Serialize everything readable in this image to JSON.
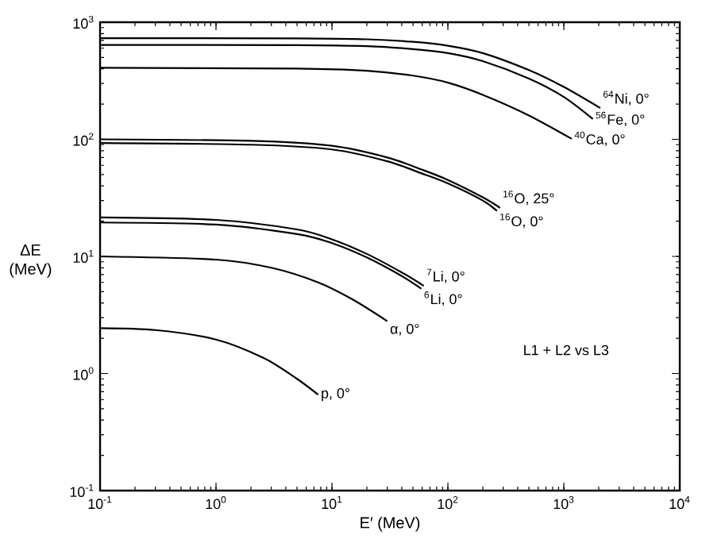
{
  "chart_data": {
    "type": "line",
    "xlabel": "E′ (MeV)",
    "ylabel": "ΔE (MeV)",
    "log": "xy",
    "marker": "none",
    "line_style": "solid",
    "xlim": [
      0.1,
      10000
    ],
    "ylim": [
      0.1,
      1000
    ],
    "xticks": [
      {
        "value": 0.1,
        "label": "10$^{-1}$"
      },
      {
        "value": 1,
        "label": "10$^{0}$"
      },
      {
        "value": 10,
        "label": "10$^{1}$"
      },
      {
        "value": 100,
        "label": "10$^{2}$"
      },
      {
        "value": 1000,
        "label": "10$^{3}$"
      },
      {
        "value": 10000,
        "label": "10$^{4}$"
      }
    ],
    "yticks": [
      {
        "value": 0.1,
        "label": "10$^{-1}$"
      },
      {
        "value": 1,
        "label": "10$^{0}$"
      },
      {
        "value": 10,
        "label": "10$^{1}$"
      },
      {
        "value": 100,
        "label": "10$^{2}$"
      },
      {
        "value": 1000,
        "label": "10$^{3}$"
      }
    ],
    "series": [
      {
        "name": "$^{64}$Ni, 0°",
        "color": "#000000",
        "x": [
          0.1,
          5,
          20,
          50,
          100,
          200,
          500,
          1000,
          2065
        ],
        "values": [
          730,
          728,
          715,
          680,
          630,
          545,
          390,
          280,
          185
        ]
      },
      {
        "name": "$^{56}$Fe, 0°",
        "color": "#000000",
        "x": [
          0.1,
          5,
          20,
          50,
          100,
          200,
          500,
          1000,
          1780
        ],
        "values": [
          640,
          638,
          625,
          590,
          545,
          465,
          330,
          230,
          149
        ]
      },
      {
        "name": "$^{40}$Ca, 0°",
        "color": "#000000",
        "x": [
          0.1,
          5,
          20,
          50,
          100,
          200,
          500,
          1170
        ],
        "values": [
          408,
          402,
          385,
          350,
          305,
          240,
          160,
          101
        ]
      },
      {
        "name": "$^{16}$O, 25°",
        "color": "#000000",
        "x": [
          0.1,
          2,
          10,
          30,
          60,
          100,
          200,
          282
        ],
        "values": [
          100,
          97,
          88,
          70,
          55,
          45,
          32,
          26
        ]
      },
      {
        "name": "$^{16}$O, 0°",
        "color": "#000000",
        "x": [
          0.1,
          2,
          10,
          30,
          60,
          100,
          200,
          265
        ],
        "values": [
          93,
          90,
          82,
          65,
          51,
          42,
          30,
          24.5
        ]
      },
      {
        "name": "$^{7}$Li, 0°",
        "color": "#000000",
        "x": [
          0.1,
          1,
          5,
          10,
          20,
          40,
          62
        ],
        "values": [
          21.5,
          20.5,
          17,
          14,
          10.5,
          7.3,
          5.6
        ]
      },
      {
        "name": "$^{6}$Li, 0°",
        "color": "#000000",
        "x": [
          0.1,
          1,
          5,
          10,
          20,
          40,
          59
        ],
        "values": [
          19.5,
          18.7,
          15.5,
          13,
          9.8,
          6.8,
          5.3
        ]
      },
      {
        "name": "α, 0°",
        "color": "#000000",
        "x": [
          0.1,
          1,
          3,
          7.6,
          15,
          30
        ],
        "values": [
          10,
          9.4,
          8,
          6,
          4.3,
          2.8
        ]
      },
      {
        "name": "p, 0°",
        "color": "#000000",
        "x": [
          0.1,
          0.3,
          1,
          2.6,
          5,
          7.6
        ],
        "values": [
          2.44,
          2.35,
          1.95,
          1.35,
          0.9,
          0.66
        ]
      }
    ],
    "annotations": [
      "L1 + L2 vs L3"
    ]
  }
}
